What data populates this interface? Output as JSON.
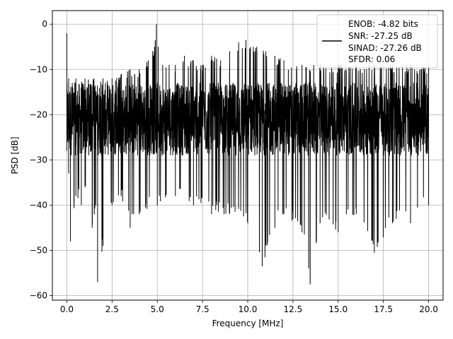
{
  "chart_data": {
    "type": "line",
    "title": "",
    "xlabel": "Frequency [MHz]",
    "ylabel": "PSD [dB]",
    "xlim": [
      -0.8,
      20.8
    ],
    "ylim": [
      -61,
      3
    ],
    "xticks": [
      0.0,
      2.5,
      5.0,
      7.5,
      10.0,
      12.5,
      15.0,
      17.5,
      20.0
    ],
    "xtick_labels": [
      "0.0",
      "2.5",
      "5.0",
      "7.5",
      "10.0",
      "12.5",
      "15.0",
      "17.5",
      "20.0"
    ],
    "yticks": [
      0,
      -10,
      -20,
      -30,
      -40,
      -50,
      -60
    ],
    "ytick_labels": [
      "0",
      "−10",
      "−20",
      "−30",
      "−40",
      "−50",
      "−60"
    ],
    "grid": true,
    "legend": {
      "placement": "top-right",
      "entries": [
        "ENOB: -4.82 bits",
        "SNR: -27.25 dB",
        "SINAD: -27.26 dB",
        "SFDR: 0.06"
      ]
    },
    "series": [
      {
        "color": "#000000",
        "x_range": [
          0.0,
          20.0
        ],
        "upper_envelope": [
          [
            0.0,
            -2
          ],
          [
            0.1,
            -12
          ],
          [
            0.3,
            -13
          ],
          [
            0.5,
            -12
          ],
          [
            1.0,
            -12
          ],
          [
            1.5,
            -12
          ],
          [
            2.0,
            -12
          ],
          [
            2.5,
            -12
          ],
          [
            3.0,
            -11
          ],
          [
            3.5,
            -10
          ],
          [
            4.0,
            -10
          ],
          [
            4.5,
            -8
          ],
          [
            4.85,
            -5
          ],
          [
            4.95,
            0
          ],
          [
            5.05,
            -5
          ],
          [
            5.3,
            -9
          ],
          [
            6.0,
            -9
          ],
          [
            6.5,
            -7
          ],
          [
            7.0,
            -8
          ],
          [
            7.5,
            -9
          ],
          [
            8.0,
            -7
          ],
          [
            8.5,
            -8
          ],
          [
            9.0,
            -6
          ],
          [
            9.5,
            -4
          ],
          [
            9.9,
            -3.5
          ],
          [
            10.5,
            -5
          ],
          [
            11.0,
            -6
          ],
          [
            11.5,
            -7
          ],
          [
            12.0,
            -8
          ],
          [
            13.0,
            -9
          ],
          [
            14.0,
            -9
          ],
          [
            15.0,
            -9
          ],
          [
            16.0,
            -9
          ],
          [
            17.0,
            -9
          ],
          [
            18.0,
            -9
          ],
          [
            19.0,
            -9
          ],
          [
            20.0,
            -9
          ]
        ],
        "lower_envelope": [
          [
            0.0,
            -28
          ],
          [
            0.1,
            -33
          ],
          [
            0.2,
            -48
          ],
          [
            0.5,
            -38
          ],
          [
            0.8,
            -40
          ],
          [
            1.0,
            -36
          ],
          [
            1.4,
            -45
          ],
          [
            1.6,
            -40
          ],
          [
            1.7,
            -57
          ],
          [
            2.0,
            -49
          ],
          [
            2.5,
            -40
          ],
          [
            3.0,
            -38
          ],
          [
            3.5,
            -45
          ],
          [
            4.0,
            -42
          ],
          [
            5.0,
            -40
          ],
          [
            6.0,
            -38
          ],
          [
            7.0,
            -40
          ],
          [
            8.0,
            -42
          ],
          [
            9.0,
            -42
          ],
          [
            10.0,
            -44
          ],
          [
            10.8,
            -53.5
          ],
          [
            11.5,
            -45
          ],
          [
            12.0,
            -42
          ],
          [
            13.0,
            -46
          ],
          [
            13.45,
            -57.5
          ],
          [
            14.0,
            -44
          ],
          [
            15.0,
            -46
          ],
          [
            16.0,
            -42
          ],
          [
            17.0,
            -50.5
          ],
          [
            18.0,
            -44
          ],
          [
            19.0,
            -44
          ],
          [
            20.0,
            -40
          ]
        ],
        "typical_band": [
          -29,
          -13
        ]
      }
    ]
  }
}
